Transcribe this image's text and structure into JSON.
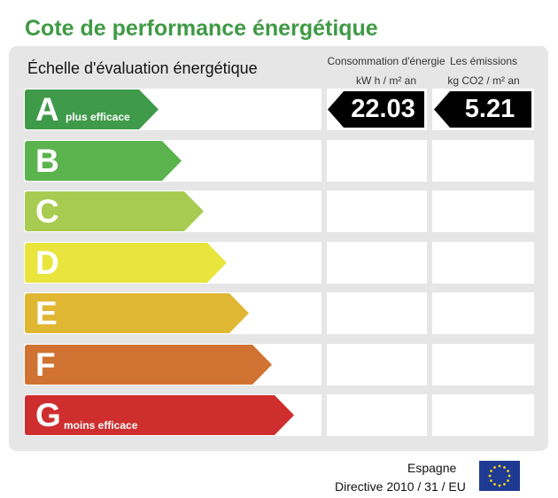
{
  "title": "Cote de performance énergétique",
  "scale_heading": "Échelle d'évaluation énergétique",
  "columns": {
    "consumption": {
      "line1": "Consommation d'énergie",
      "line2": "kW h / m² an"
    },
    "emissions": {
      "line1": "Les émissions",
      "line2": "kg CO2 / m² an"
    }
  },
  "classes": [
    {
      "letter": "A",
      "sublabel": "plus efficace",
      "color": "#3f9a4a"
    },
    {
      "letter": "B",
      "sublabel": "",
      "color": "#5bb34e"
    },
    {
      "letter": "C",
      "sublabel": "",
      "color": "#a8cc52"
    },
    {
      "letter": "D",
      "sublabel": "",
      "color": "#e9e53c"
    },
    {
      "letter": "E",
      "sublabel": "",
      "color": "#e0b733"
    },
    {
      "letter": "F",
      "sublabel": "",
      "color": "#d07231"
    },
    {
      "letter": "G",
      "sublabel": "moins efficace",
      "color": "#ce2f2e"
    }
  ],
  "rating": {
    "class": "A",
    "consumption_value": "22.03",
    "emissions_value": "5.21"
  },
  "footer": {
    "country": "Espagne",
    "directive": "Directive 2010 / 31 / EU"
  }
}
